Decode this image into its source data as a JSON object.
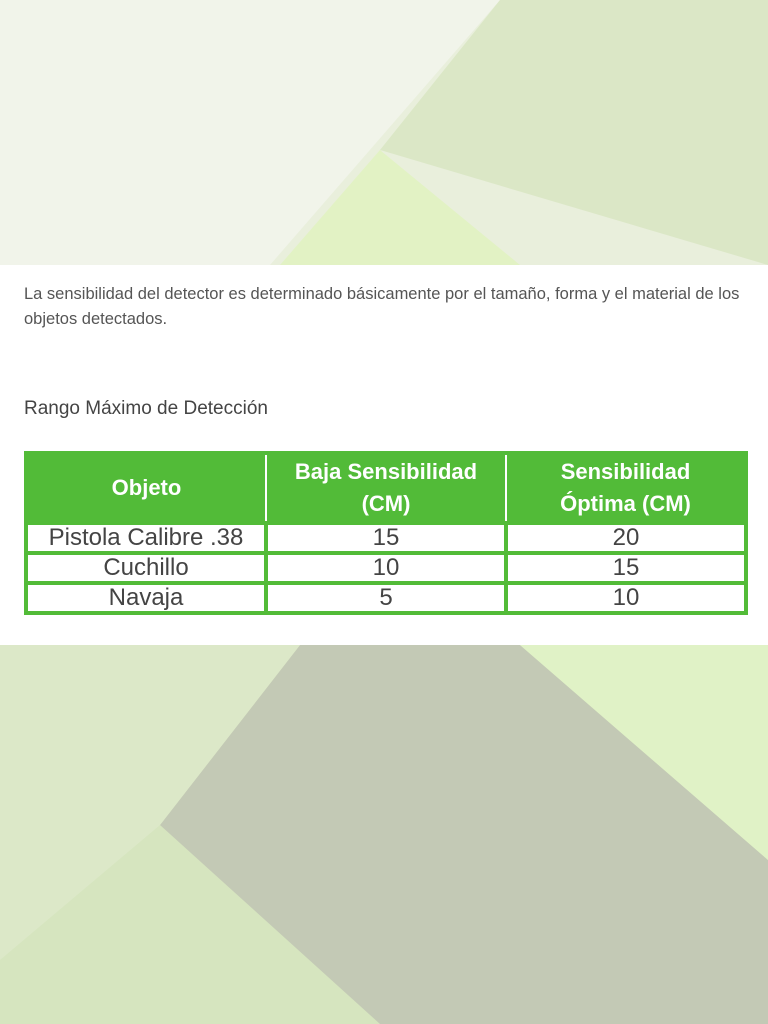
{
  "intro_text": "La sensibilidad del detector es determinado básicamente por el tamaño, forma y el material de los objetos detectados.",
  "section_title": "Rango Máximo de Detección",
  "table": {
    "headers": [
      "Objeto",
      "Baja Sensibilidad (CM)",
      "Sensibilidad Óptima (CM)"
    ],
    "rows": [
      [
        "Pistola Calibre .38",
        "15",
        "20"
      ],
      [
        "Cuchillo",
        "10",
        "15"
      ],
      [
        "Navaja",
        "5",
        "10"
      ]
    ]
  },
  "colors": {
    "table_green": "#52bb38",
    "background_green": "#dfe9cf"
  }
}
